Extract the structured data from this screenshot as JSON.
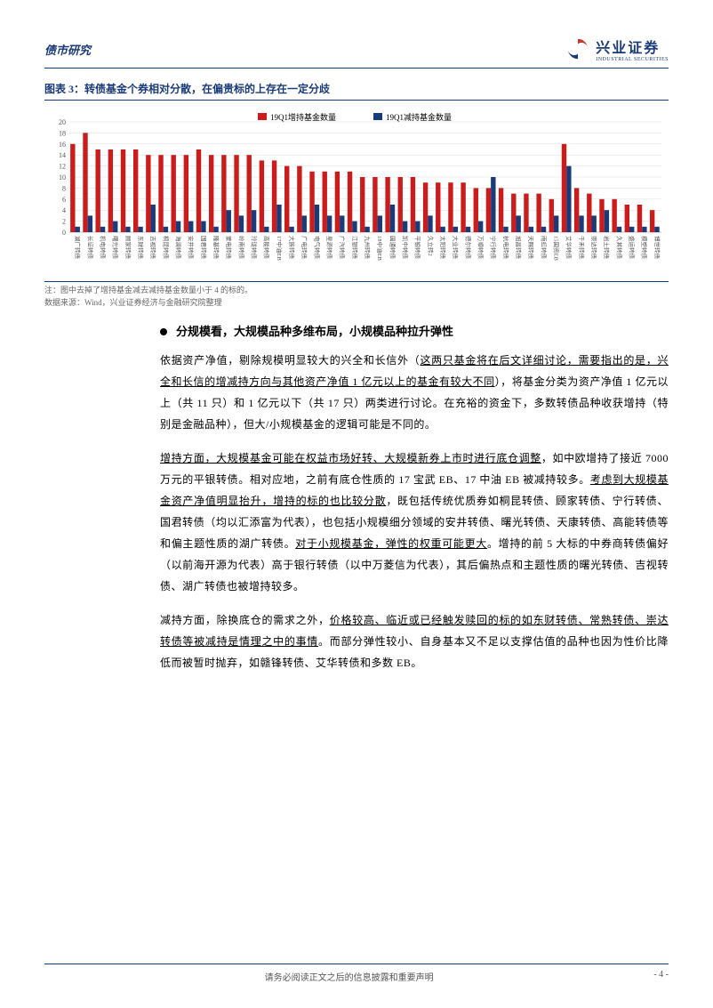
{
  "header": {
    "left": "债市研究"
  },
  "logo": {
    "cn": "兴业证券",
    "en": "INDUSTRIAL SECURITIES"
  },
  "chart": {
    "title": "图表 3：转债基金个券相对分散，在偏贵标的上存在一定分歧",
    "type": "bar",
    "legend": {
      "inc": "19Q1增持基金数量",
      "dec": "19Q1减持基金数量"
    },
    "ylim": [
      0,
      20
    ],
    "ytick_step": 2,
    "inc_color": "#cc1b1b",
    "dec_color": "#1a3b7a",
    "background_color": "#ffffff",
    "grid_color": "#dddddd",
    "categories": [
      "湖广转债",
      "长证转债",
      "机电转债",
      "曙光转债",
      "顾家转债",
      "东财转债",
      "吉视转债",
      "桐昆转债",
      "海澜转债",
      "安井转债",
      "国君转债",
      "隆基转债",
      "蒙电转债",
      "岭南转债",
      "玲珑转债",
      "高能转债",
      "17中油EB",
      "大族转债",
      "广电转债",
      "电气转债",
      "星源转债",
      "广汽转债",
      "江银转债",
      "九州转债",
      "18中油EB",
      "圆通转债",
      "凯中转债",
      "平银转债",
      "久立转2",
      "太阳转债",
      "大业转债",
      "德尔转债",
      "万顺转债",
      "宁行转债",
      "杭电转债",
      "旭昌转债",
      "天赐转债",
      "雨虹转债",
      "15国资EB",
      "艾华转债",
      "千禾转债",
      "崇达转债",
      "岩土转债",
      "久其转债",
      "盛运转债",
      "模塑转债",
      "博世转债"
    ],
    "inc_values": [
      16,
      18,
      15,
      15,
      15,
      15,
      14,
      14,
      14,
      14,
      15,
      14,
      14,
      14,
      14,
      13,
      13,
      12,
      12,
      11,
      11,
      11,
      11,
      10,
      10,
      10,
      10,
      10,
      9,
      9,
      9,
      9,
      8,
      8,
      8,
      7,
      7,
      7,
      6,
      16,
      8,
      7,
      6,
      6,
      5,
      5,
      4
    ],
    "dec_values": [
      1,
      3,
      1,
      2,
      1,
      1,
      5,
      1,
      2,
      2,
      2,
      1,
      4,
      3,
      4,
      1,
      5,
      1,
      3,
      5,
      3,
      3,
      2,
      1,
      3,
      5,
      2,
      2,
      3,
      1,
      1,
      1,
      2,
      10,
      1,
      3,
      1,
      1,
      3,
      12,
      3,
      3,
      4,
      1,
      1,
      1,
      1
    ],
    "note": "注：图中去掉了增持基金减去减持基金数量小于 4 的标的。",
    "source": "数据来源：Wind，兴业证券经济与金融研究院整理"
  },
  "section": {
    "title": "分规模看，大规模品种多维布局，小规模品种拉升弹性"
  },
  "para1": {
    "t1": "依据资产净值，剔除规模明显较大的兴全和长信外（",
    "u1": "这两只基金将在后文详细讨论，需要指出的是，兴全和长信的增减持方向与其他资产净值 1 亿元以上的基金有较大不同",
    "t2": "），将基金分类为资产净值 1 亿元以上（共 11 只）和 1 亿元以下（共 17 只）两类进行讨论。在充裕的资金下，多数转债品种收获增持（特别是金融品种），但大/小规模基金的逻辑可能是不同的。"
  },
  "para2": {
    "u1": "增持方面，大规模基金可能在权益市场好转、大规模新券上市时进行底仓调整",
    "t1": "，如中欧增持了接近 7000 万元的平银转债。相对应地，之前有底仓性质的 17 宝武 EB、17 中油 EB 被减持较多。",
    "u2": "考虑到大规模基金资产净值明显抬升，增持的标的也比较分散",
    "t2": "，既包括传统优质券如桐昆转债、顾家转债、宁行转债、国君转债（均以汇添富为代表），也包括小规模细分领域的安井转债、曙光转债、天康转债、高能转债等和偏主题性质的湖广转债。",
    "u3": "对于小规模基金，弹性的权重可能更大",
    "t3": "。增持的前 5 大标的中券商转债偏好（以前海开源为代表）高于银行转债（以中万菱信为代表），其后偏热点和主题性质的曙光转债、吉视转债、湖广转债也被增持较多。"
  },
  "para3": {
    "t1": "减持方面，除换底仓的需求之外，",
    "u1": "价格较高、临近或已经触发赎回的标的如东财转债、常熟转债、崇达转债等被减持是情理之中的事情",
    "t2": "。而部分弹性较小、自身基本又不足以支撑估值的品种也因为性价比降低而被暂时抛弃，如赣锋转债、艾华转债和多数 EB。"
  },
  "footer": {
    "disclaimer": "请务必阅读正文之后的信息披露和重要声明",
    "page": "- 4 -"
  }
}
